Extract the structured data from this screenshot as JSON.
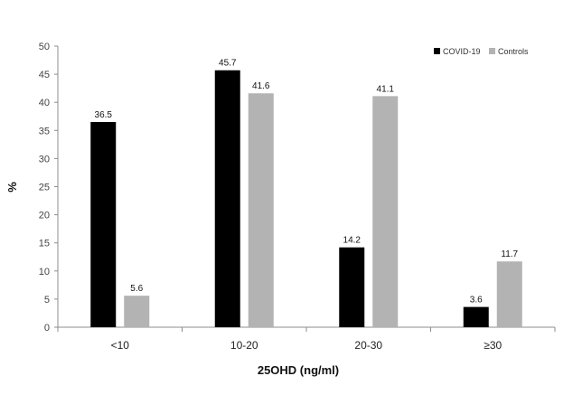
{
  "chart_data": {
    "type": "bar",
    "categories": [
      "<10",
      "10-20",
      "20-30",
      "≥30"
    ],
    "series": [
      {
        "name": "COVID-19",
        "values": [
          36.5,
          45.7,
          14.2,
          3.6
        ],
        "color": "#000000"
      },
      {
        "name": "Controls",
        "values": [
          5.6,
          41.6,
          41.1,
          11.7
        ],
        "color": "#b3b3b3"
      }
    ],
    "xlabel": "25OHD (ng/ml)",
    "ylabel": "%",
    "ylim": [
      0,
      50
    ],
    "yticks": [
      0,
      5,
      10,
      15,
      20,
      25,
      30,
      35,
      40,
      45,
      50
    ],
    "grid": false,
    "legend_position": "top-right",
    "data_labels": true
  }
}
